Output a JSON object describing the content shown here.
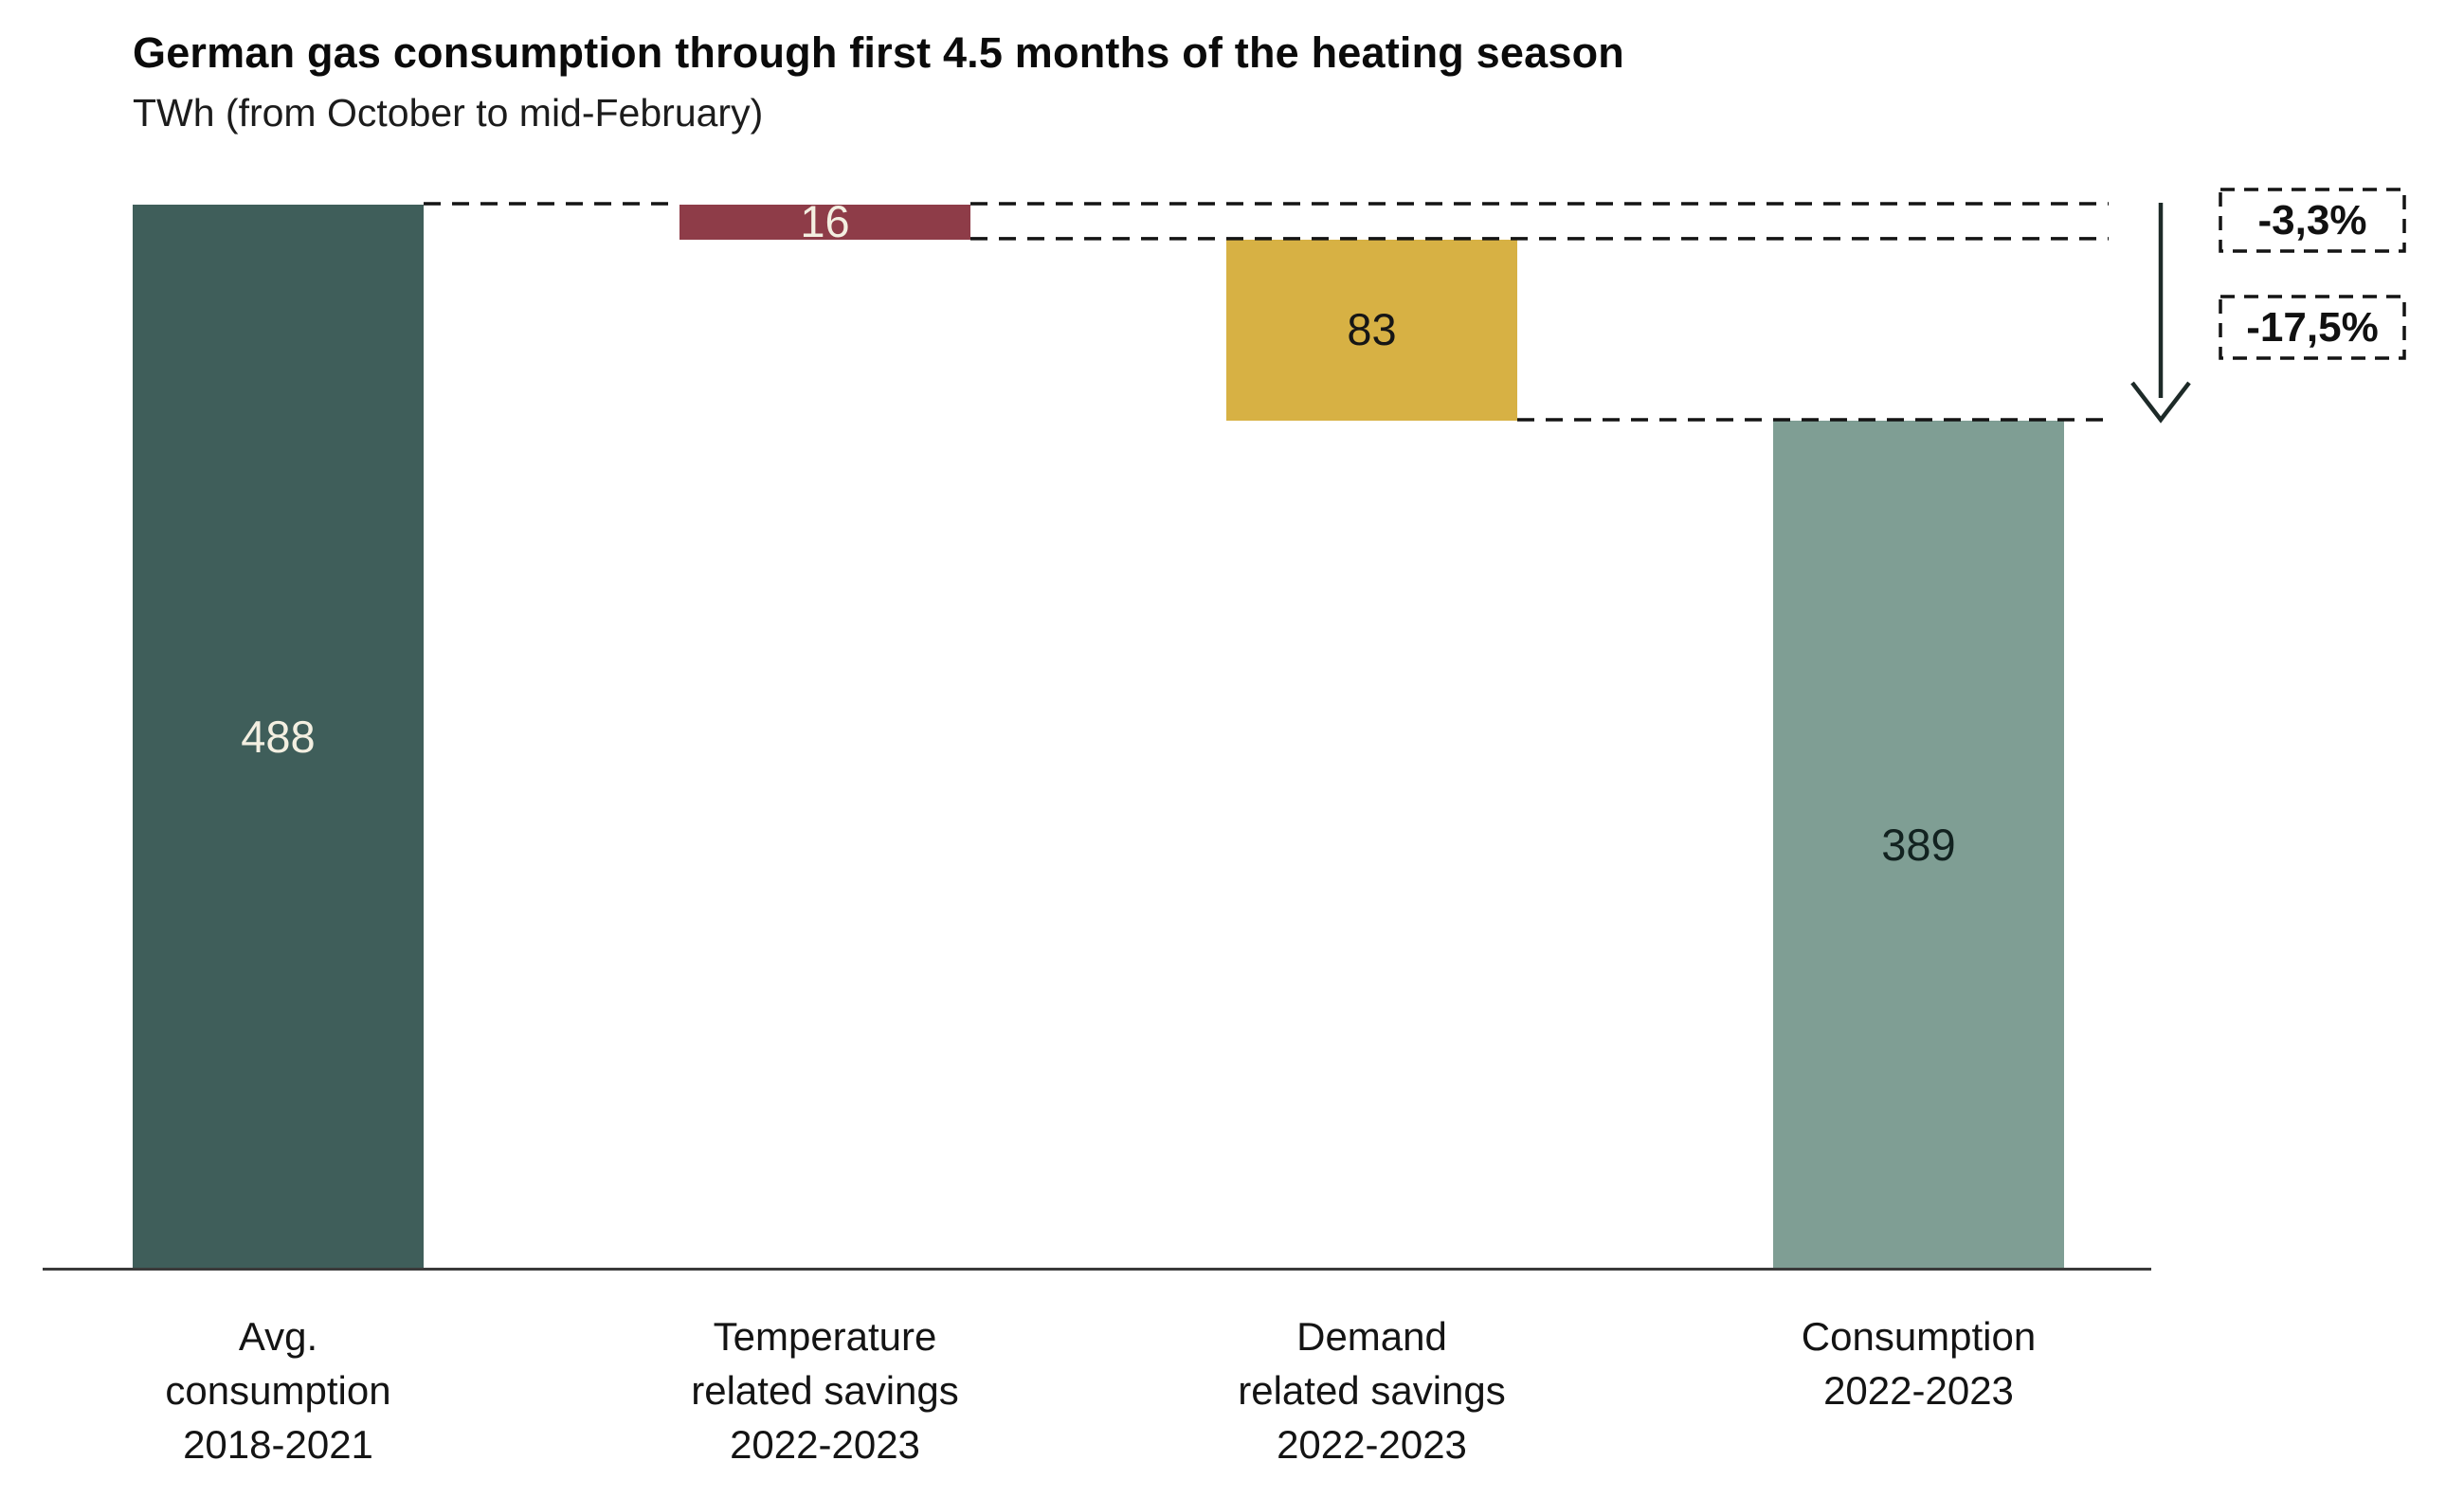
{
  "header": {
    "title": "German gas consumption through first 4.5 months of the heating season",
    "subtitle": "TWh (from October to mid-February)"
  },
  "chart_data": {
    "type": "bar",
    "subtype": "waterfall",
    "title": "German gas consumption through first 4.5 months of the heating season",
    "ylabel": "TWh (from October to mid-February)",
    "unit": "TWh",
    "ylim": [
      0,
      510
    ],
    "grid": false,
    "legend": false,
    "categories": [
      "Avg. consumption 2018-2021",
      "Temperature related savings 2022-2023",
      "Demand related savings 2022-2023",
      "Consumption 2022-2023"
    ],
    "bars": [
      {
        "id": "avg-consumption-2018-2021",
        "label_lines": [
          "Avg.",
          "consumption",
          "2018-2021"
        ],
        "value": 488,
        "start": 0,
        "end": 488,
        "display_value": "488",
        "color": "#3f5e5a",
        "value_color": "#f3efe1"
      },
      {
        "id": "temperature-related-savings-2022-2023",
        "label_lines": [
          "Temperature",
          "related savings",
          "2022-2023"
        ],
        "value": -16,
        "start": 488,
        "end": 472,
        "display_value": "16",
        "color": "#8e3c48",
        "value_color": "#f3efe1"
      },
      {
        "id": "demand-related-savings-2022-2023",
        "label_lines": [
          "Demand",
          "related savings",
          "2022-2023"
        ],
        "value": -83,
        "start": 472,
        "end": 389,
        "display_value": "83",
        "color": "#d7b144",
        "value_color": "#161616"
      },
      {
        "id": "consumption-2022-2023",
        "label_lines": [
          "Consumption",
          "2022-2023"
        ],
        "value": 389,
        "start": 389,
        "end": 0,
        "display_value": "389",
        "color": "#7f9e94",
        "value_color": "#122220"
      }
    ],
    "guide_levels": [
      488,
      472,
      389
    ],
    "annotations": [
      {
        "id": "temperature-savings-pct",
        "text": "-3,3%"
      },
      {
        "id": "total-savings-pct",
        "text": "-17,5%"
      }
    ],
    "colors": {
      "dashed_line": "#141414",
      "axis": "#3a3a3a",
      "arrow": "#1d2a28"
    }
  }
}
